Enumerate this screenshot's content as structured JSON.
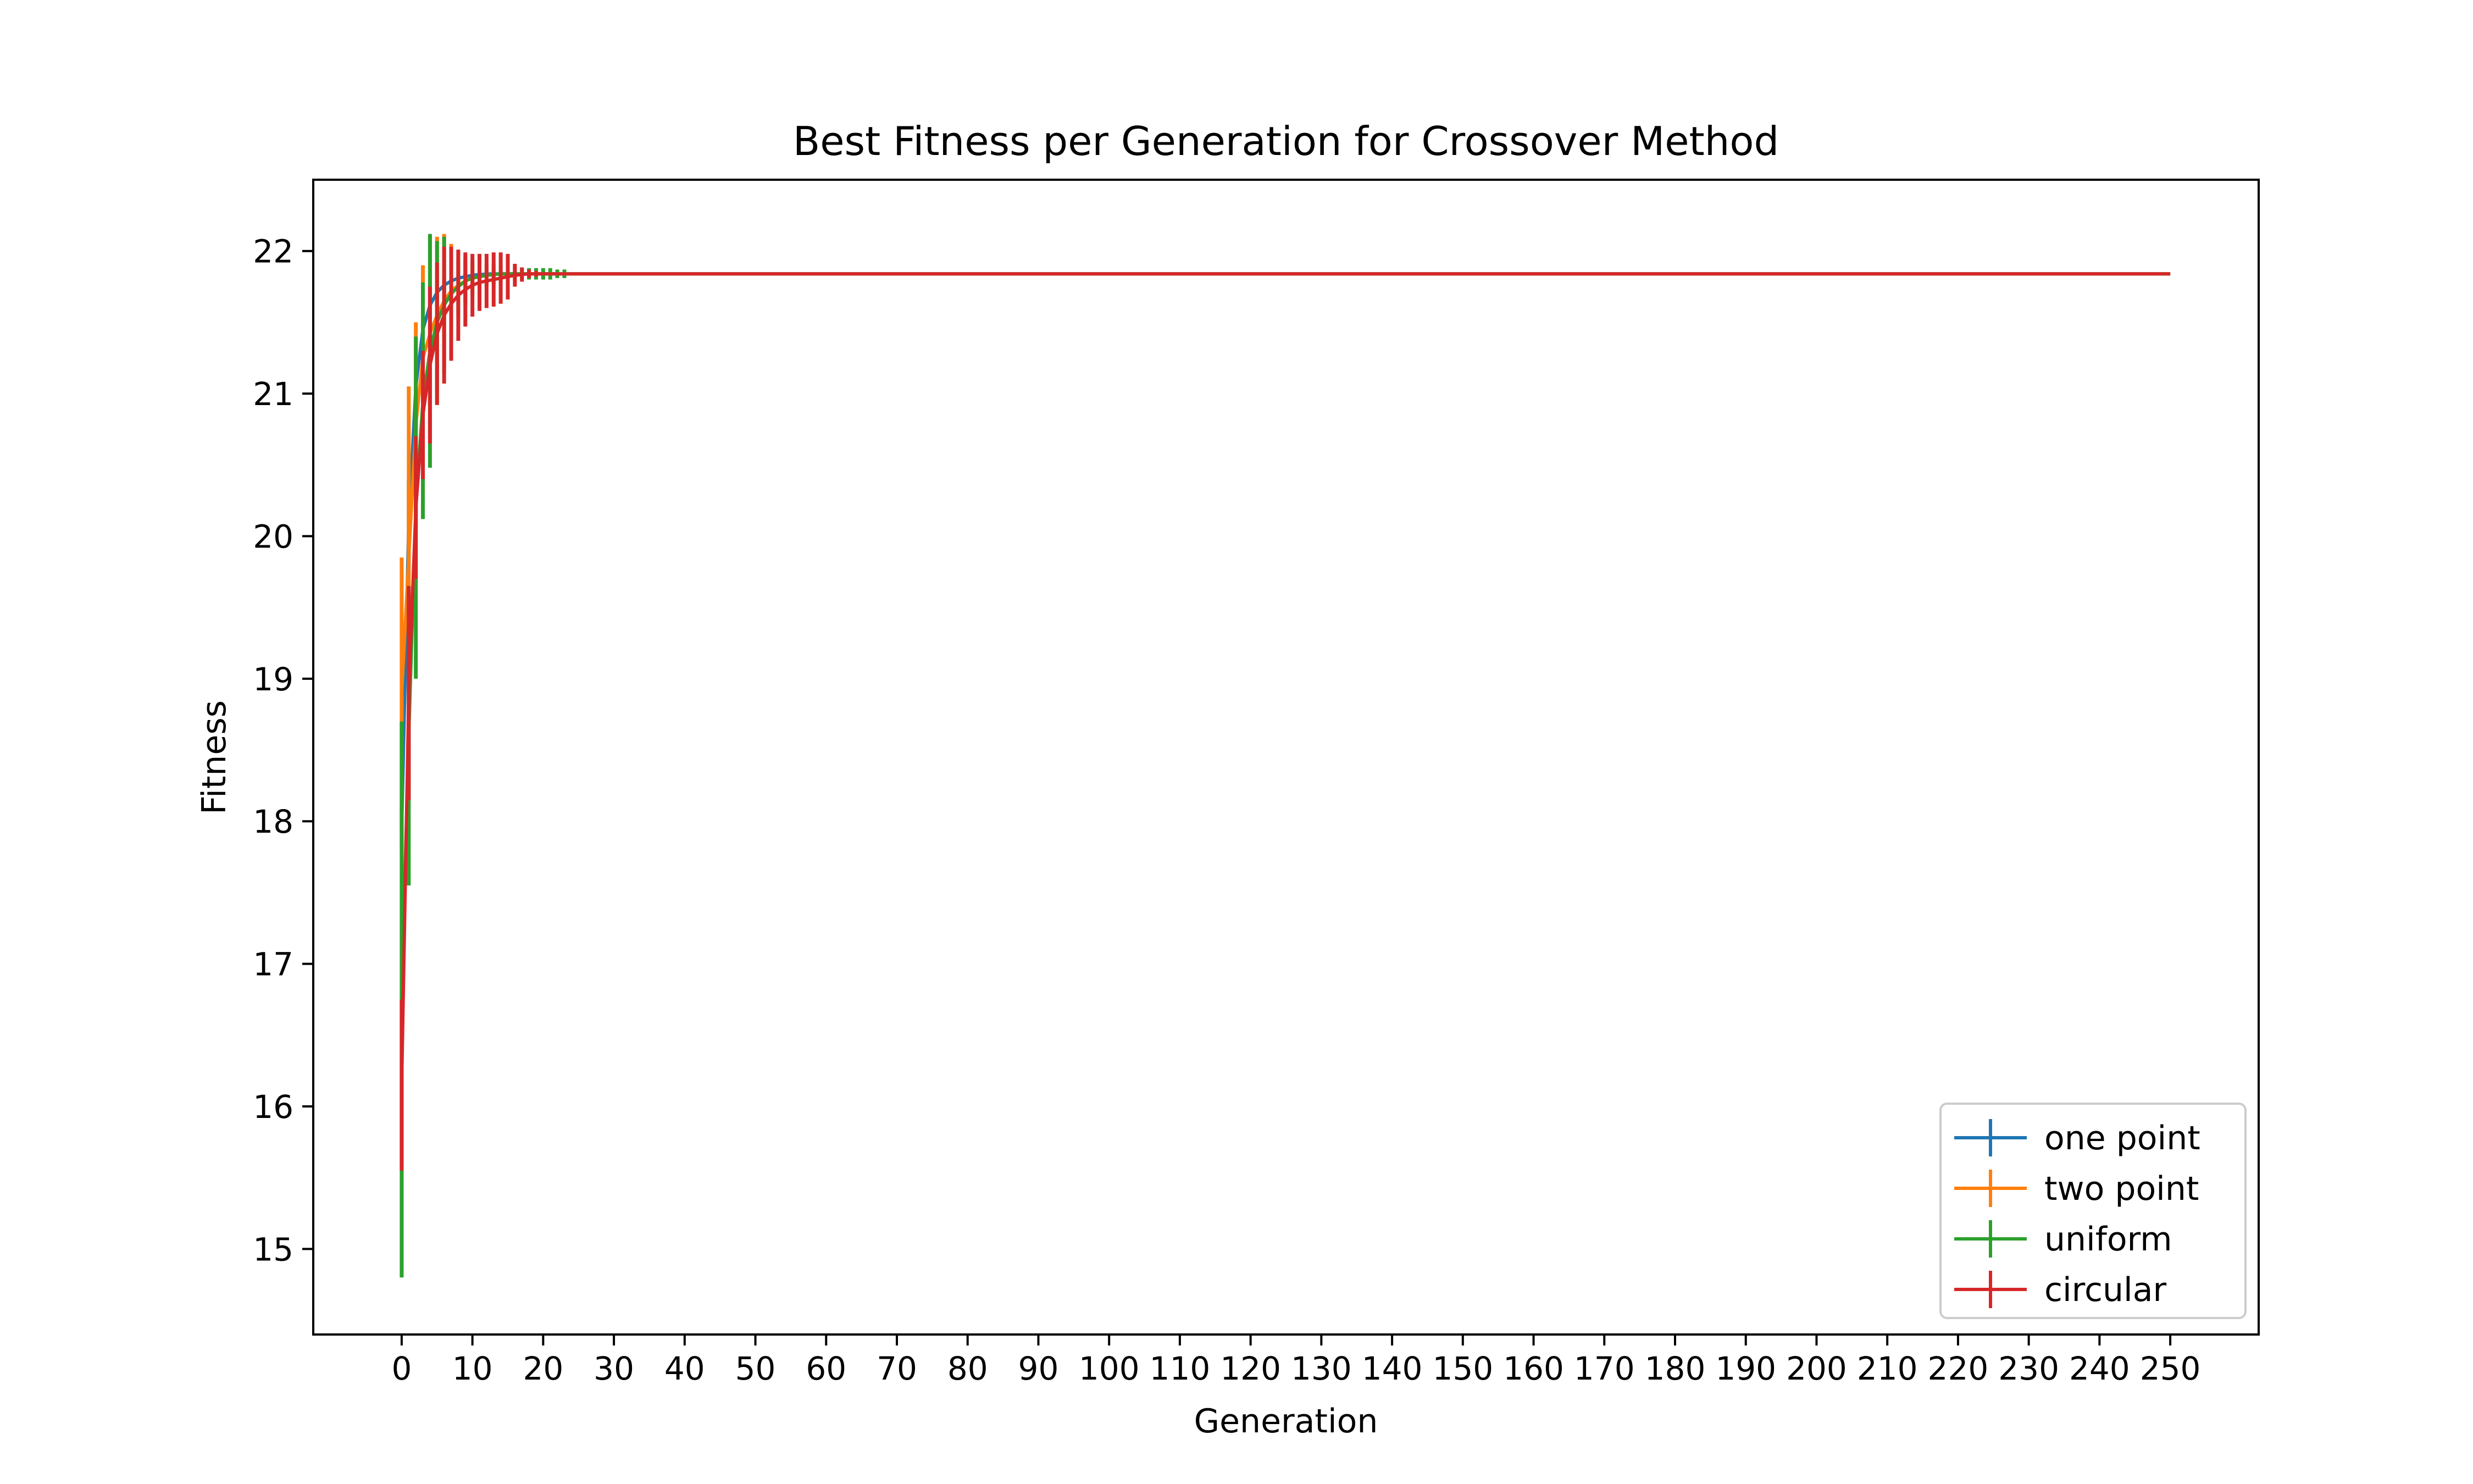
{
  "chart_data": {
    "type": "line",
    "title": "Best Fitness per Generation for Crossover Method",
    "xlabel": "Generation",
    "ylabel": "Fitness",
    "xlim": [
      -12.5,
      262.5
    ],
    "ylim": [
      14.4,
      22.5
    ],
    "xticks": [
      0,
      10,
      20,
      30,
      40,
      50,
      60,
      70,
      80,
      90,
      100,
      110,
      120,
      130,
      140,
      150,
      160,
      170,
      180,
      190,
      200,
      210,
      220,
      230,
      240,
      250
    ],
    "yticks": [
      15,
      16,
      17,
      18,
      19,
      20,
      21,
      22
    ],
    "grid": false,
    "legend": "lower-right",
    "series": [
      {
        "name": "one point",
        "color": "#1f77b4",
        "final": 21.84,
        "x": [
          0,
          1,
          2,
          3,
          4,
          5,
          6,
          7,
          8,
          9,
          10,
          11,
          12,
          13,
          14,
          15,
          16,
          17,
          18,
          19,
          20
        ],
        "y": [
          17.95,
          20.1,
          21.05,
          21.45,
          21.62,
          21.71,
          21.76,
          21.79,
          21.81,
          21.82,
          21.83,
          21.835,
          21.838,
          21.84,
          21.84,
          21.84,
          21.84,
          21.84,
          21.84,
          21.84,
          21.84
        ],
        "err": [
          0.15,
          0.3,
          0.3,
          0.22,
          0.16,
          0.1,
          0.06,
          0.04,
          0.03,
          0.02,
          0.01,
          0.01,
          0.005,
          0.005,
          0.0,
          0.0,
          0.0,
          0.0,
          0.0,
          0.0,
          0.0
        ]
      },
      {
        "name": "two point",
        "color": "#ff7f0e",
        "final": 21.84,
        "x": [
          0,
          1,
          2,
          3,
          4,
          5,
          6,
          7,
          8,
          9,
          10,
          11,
          12,
          13,
          14,
          15,
          16,
          17,
          18,
          19,
          20
        ],
        "y": [
          18.9,
          19.85,
          20.78,
          21.25,
          21.42,
          21.55,
          21.65,
          21.72,
          21.76,
          21.79,
          21.81,
          21.82,
          21.83,
          21.835,
          21.84,
          21.84,
          21.84,
          21.84,
          21.84,
          21.84,
          21.84
        ],
        "err": [
          0.95,
          1.2,
          0.72,
          0.65,
          0.68,
          0.55,
          0.47,
          0.33,
          0.24,
          0.18,
          0.11,
          0.08,
          0.05,
          0.03,
          0.02,
          0.01,
          0.0,
          0.0,
          0.0,
          0.0,
          0.0
        ]
      },
      {
        "name": "uniform",
        "color": "#2ca02c",
        "final": 21.84,
        "x": [
          0,
          1,
          2,
          3,
          4,
          5,
          6,
          7,
          8,
          9,
          10,
          11,
          12,
          13,
          14,
          15,
          16,
          17,
          18,
          19,
          20,
          21,
          22,
          23,
          24,
          25
        ],
        "y": [
          16.75,
          18.6,
          20.2,
          20.95,
          21.3,
          21.5,
          21.62,
          21.7,
          21.75,
          21.79,
          21.81,
          21.82,
          21.83,
          21.835,
          21.84,
          21.84,
          21.84,
          21.84,
          21.84,
          21.84,
          21.84,
          21.84,
          21.84,
          21.84,
          21.84,
          21.84
        ],
        "err": [
          1.95,
          1.05,
          1.2,
          0.83,
          0.82,
          0.57,
          0.48,
          0.28,
          0.2,
          0.15,
          0.12,
          0.1,
          0.08,
          0.07,
          0.06,
          0.05,
          0.05,
          0.04,
          0.04,
          0.04,
          0.04,
          0.04,
          0.03,
          0.03,
          0.0,
          0.0
        ]
      },
      {
        "name": "circular",
        "color": "#d62728",
        "final": 21.84,
        "x": [
          0,
          1,
          2,
          3,
          4,
          5,
          6,
          7,
          8,
          9,
          10,
          11,
          12,
          13,
          14,
          15,
          16,
          17,
          18,
          19,
          20
        ],
        "y": [
          16.15,
          18.9,
          20.2,
          20.85,
          21.2,
          21.42,
          21.55,
          21.63,
          21.69,
          21.73,
          21.76,
          21.78,
          21.79,
          21.8,
          21.81,
          21.82,
          21.83,
          21.835,
          21.84,
          21.84,
          21.84
        ],
        "err": [
          0.6,
          0.75,
          0.5,
          0.45,
          0.55,
          0.5,
          0.48,
          0.4,
          0.32,
          0.26,
          0.22,
          0.2,
          0.19,
          0.19,
          0.18,
          0.16,
          0.08,
          0.05,
          0.03,
          0.02,
          0.0
        ]
      }
    ]
  }
}
